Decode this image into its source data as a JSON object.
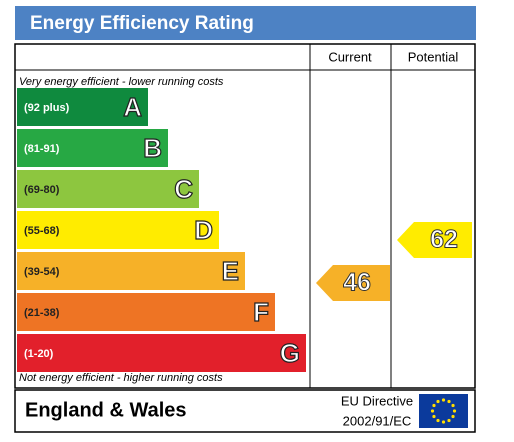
{
  "header": {
    "title": "Energy Efficiency Rating"
  },
  "columns": {
    "current": "Current",
    "potential": "Potential"
  },
  "top_note": "Very energy efficient - lower running costs",
  "bottom_note": "Not energy efficient - higher running costs",
  "bands": [
    {
      "range": "(92 plus)",
      "letter": "A",
      "color": "#0f8a3e"
    },
    {
      "range": "(81-91)",
      "letter": "B",
      "color": "#27a844"
    },
    {
      "range": "(69-80)",
      "letter": "C",
      "color": "#8dc63f"
    },
    {
      "range": "(55-68)",
      "letter": "D",
      "color": "#ffec00"
    },
    {
      "range": "(39-54)",
      "letter": "E",
      "color": "#f6b128"
    },
    {
      "range": "(21-38)",
      "letter": "F",
      "color": "#ee7424"
    },
    {
      "range": "(1-20)",
      "letter": "G",
      "color": "#e2202b"
    }
  ],
  "current": {
    "value": "46",
    "color": "#f6b128"
  },
  "potential": {
    "value": "62",
    "color": "#ffec00"
  },
  "footer": {
    "region": "England & Wales",
    "directive_line1": "EU Directive",
    "directive_line2": "2002/91/EC"
  }
}
